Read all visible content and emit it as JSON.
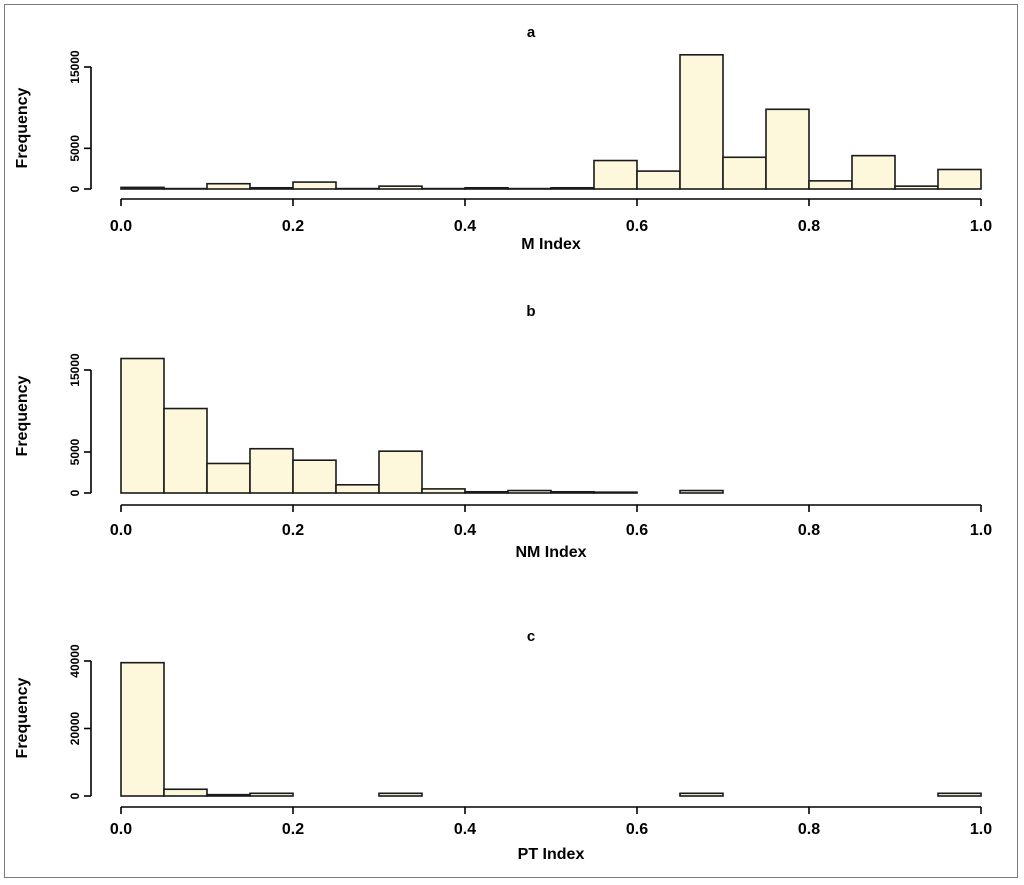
{
  "chart_data": [
    {
      "type": "bar",
      "title": "a",
      "xlabel": "M Index",
      "ylabel": "Frequency",
      "xlim": [
        0,
        1
      ],
      "ylim": [
        0,
        15000
      ],
      "x_ticks": [
        "0.0",
        "0.2",
        "0.4",
        "0.6",
        "0.8",
        "1.0"
      ],
      "y_ticks": [
        "0",
        "5000",
        "15000"
      ],
      "bin_width": 0.05,
      "bins": [
        0.0,
        0.05,
        0.1,
        0.15,
        0.2,
        0.25,
        0.3,
        0.35,
        0.4,
        0.45,
        0.5,
        0.55,
        0.6,
        0.65,
        0.7,
        0.75,
        0.8,
        0.85,
        0.9,
        0.95
      ],
      "values": [
        200,
        50,
        650,
        150,
        850,
        50,
        350,
        50,
        150,
        50,
        150,
        3500,
        2200,
        16500,
        3900,
        9800,
        1000,
        4100,
        350,
        2400
      ]
    },
    {
      "type": "bar",
      "title": "b",
      "xlabel": "NM Index",
      "ylabel": "Frequency",
      "xlim": [
        0,
        1
      ],
      "ylim": [
        0,
        15000
      ],
      "x_ticks": [
        "0.0",
        "0.2",
        "0.4",
        "0.6",
        "0.8",
        "1.0"
      ],
      "y_ticks": [
        "0",
        "5000",
        "15000"
      ],
      "bin_width": 0.05,
      "bins": [
        0.0,
        0.05,
        0.1,
        0.15,
        0.2,
        0.25,
        0.3,
        0.35,
        0.4,
        0.45,
        0.5,
        0.55,
        0.6,
        0.65,
        0.7,
        0.75,
        0.8,
        0.85,
        0.9,
        0.95
      ],
      "values": [
        16400,
        10300,
        3600,
        5400,
        4000,
        1000,
        5100,
        500,
        150,
        300,
        150,
        100,
        0,
        300,
        0,
        0,
        0,
        0,
        0,
        0
      ]
    },
    {
      "type": "bar",
      "title": "c",
      "xlabel": "PT Index",
      "ylabel": "Frequency",
      "xlim": [
        0,
        1
      ],
      "ylim": [
        0,
        40000
      ],
      "x_ticks": [
        "0.0",
        "0.2",
        "0.4",
        "0.6",
        "0.8",
        "1.0"
      ],
      "y_ticks": [
        "0",
        "20000",
        "40000"
      ],
      "bin_width": 0.05,
      "bins": [
        0.0,
        0.05,
        0.1,
        0.15,
        0.2,
        0.25,
        0.3,
        0.35,
        0.4,
        0.45,
        0.5,
        0.55,
        0.6,
        0.65,
        0.7,
        0.75,
        0.8,
        0.85,
        0.9,
        0.95
      ],
      "values": [
        39500,
        2000,
        400,
        800,
        0,
        0,
        800,
        0,
        0,
        0,
        0,
        0,
        0,
        800,
        0,
        0,
        0,
        0,
        0,
        800
      ]
    }
  ]
}
